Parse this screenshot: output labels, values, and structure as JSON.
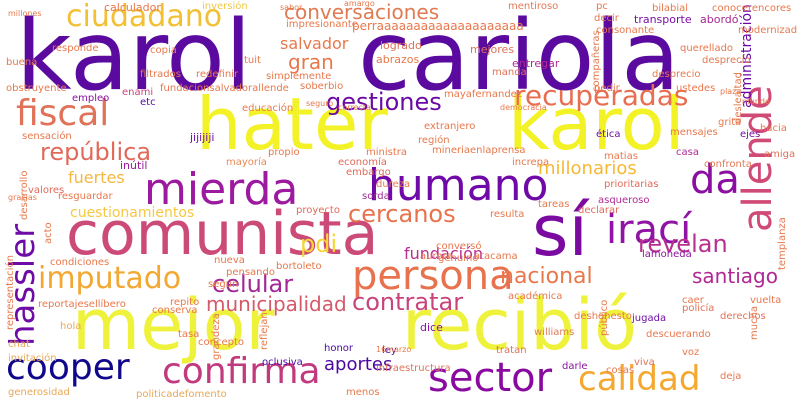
{
  "words": [
    {
      "text": "karol",
      "color": "#5b0aa0"
    },
    {
      "text": "cariola",
      "color": "#5b0aa0"
    },
    {
      "text": "hater",
      "color": "#f2f226"
    },
    {
      "text": "karol",
      "color": "#f2f226"
    },
    {
      "text": "mejor",
      "color": "#eef23a"
    },
    {
      "text": "recibió",
      "color": "#eef23a"
    },
    {
      "text": "comunista",
      "color": "#cc4a78"
    },
    {
      "text": "sí",
      "color": "#7a0aa0"
    },
    {
      "text": "mierda",
      "color": "#9c1aa0"
    },
    {
      "text": "humano",
      "color": "#6f0aa8"
    },
    {
      "text": "persona",
      "color": "#e8724e"
    },
    {
      "text": "confirma",
      "color": "#c23a7e"
    },
    {
      "text": "sector",
      "color": "#8a0aa0"
    },
    {
      "text": "calidad",
      "color": "#f5a830"
    },
    {
      "text": "allende",
      "color": "#d04a76"
    },
    {
      "text": "irací",
      "color": "#8f14a4"
    },
    {
      "text": "da",
      "color": "#8a0ea0"
    },
    {
      "text": "cooper",
      "color": "#10078a"
    },
    {
      "text": "hassler",
      "color": "#6e0aa6"
    },
    {
      "text": "fiscal",
      "color": "#e07258"
    },
    {
      "text": "ciudadano",
      "color": "#f2c032"
    },
    {
      "text": "imputado",
      "color": "#f2a832"
    },
    {
      "text": "recuperadas",
      "color": "#e86e52"
    },
    {
      "text": "gestiones",
      "color": "#6a0aa4"
    },
    {
      "text": "república",
      "color": "#e06a5a"
    },
    {
      "text": "celular",
      "color": "#a22898"
    },
    {
      "text": "revelan",
      "color": "#b8308e"
    },
    {
      "text": "contratar",
      "color": "#c8447c"
    },
    {
      "text": "nacional",
      "color": "#e8784c"
    },
    {
      "text": "municipalidad",
      "color": "#d45a6a"
    },
    {
      "text": "pdi",
      "color": "#f5d838"
    },
    {
      "text": "cercanos",
      "color": "#e8724e"
    },
    {
      "text": "santiago",
      "color": "#b02894"
    },
    {
      "text": "conversaciones",
      "color": "#e07a52"
    },
    {
      "text": "gran",
      "color": "#e8784c"
    },
    {
      "text": "salvador",
      "color": "#e8784c"
    },
    {
      "text": "fundación",
      "color": "#b82e8e"
    },
    {
      "text": "aportes",
      "color": "#4a08a0"
    },
    {
      "text": "millonarios",
      "color": "#f5b832"
    },
    {
      "text": "cuestionamientos",
      "color": "#f5c840"
    },
    {
      "text": "fuertes",
      "color": "#f2b840"
    },
    {
      "text": "administración",
      "color": "#6a0aa4"
    },
    {
      "text": "calculador",
      "color": "#e8784c"
    },
    {
      "text": "inversión",
      "color": "#eec848"
    },
    {
      "text": "logrado",
      "color": "#e07258"
    },
    {
      "text": "abrazos",
      "color": "#e8784c"
    },
    {
      "text": "mejores",
      "color": "#e07258"
    },
    {
      "text": "mentiroso",
      "color": "#e07a58"
    },
    {
      "text": "transporte",
      "color": "#7a10a4"
    },
    {
      "text": "abordó",
      "color": "#a82890"
    },
    {
      "text": "entregar",
      "color": "#b02a94"
    },
    {
      "text": "manda",
      "color": "#e07258"
    },
    {
      "text": "empleo",
      "color": "#8a14a0"
    },
    {
      "text": "enami",
      "color": "#c8447c"
    },
    {
      "text": "etc",
      "color": "#5a0aa0"
    },
    {
      "text": "ética",
      "color": "#7010a4"
    },
    {
      "text": "ejes",
      "color": "#7010a4"
    },
    {
      "text": "mayoría",
      "color": "#e88a58"
    },
    {
      "text": "economía",
      "color": "#e06a5a"
    },
    {
      "text": "embargo",
      "color": "#e06a5a"
    },
    {
      "text": "dureza",
      "color": "#e8784c"
    },
    {
      "text": "sorda",
      "color": "#a02898"
    },
    {
      "text": "proyecto",
      "color": "#e06a5a"
    },
    {
      "text": "resguardar",
      "color": "#e8784c"
    },
    {
      "text": "valores",
      "color": "#e06a5a"
    },
    {
      "text": "inútil",
      "color": "#9c1aa0"
    },
    {
      "text": "jijijiji",
      "color": "#7010a4"
    },
    {
      "text": "prioritarias",
      "color": "#e06a5a"
    },
    {
      "text": "asqueroso",
      "color": "#b02a94"
    },
    {
      "text": "declarar",
      "color": "#e06a5a"
    },
    {
      "text": "casa",
      "color": "#b02a94"
    },
    {
      "text": "amiga",
      "color": "#e07258"
    },
    {
      "text": "confronta",
      "color": "#e07a58"
    },
    {
      "text": "lamoneda",
      "color": "#8a14a0"
    },
    {
      "text": "williams",
      "color": "#e07a58"
    },
    {
      "text": "jugada",
      "color": "#7010a4"
    },
    {
      "text": "policía",
      "color": "#e07258"
    },
    {
      "text": "derechos",
      "color": "#e07258"
    },
    {
      "text": "vuelta",
      "color": "#e8784c"
    },
    {
      "text": "honor",
      "color": "#4a08a0"
    },
    {
      "text": "dice",
      "color": "#8a0ea0"
    },
    {
      "text": "ley",
      "color": "#4a08a0"
    },
    {
      "text": "oclusiva",
      "color": "#4a08a0"
    },
    {
      "text": "infraestructura",
      "color": "#e07258"
    },
    {
      "text": "cosas",
      "color": "#e8784c"
    },
    {
      "text": "viva",
      "color": "#e07258"
    },
    {
      "text": "darle",
      "color": "#8a14a0"
    },
    {
      "text": "tratan",
      "color": "#e07258"
    },
    {
      "text": "chat",
      "color": "#e8a858"
    },
    {
      "text": "hola",
      "color": "#e8a858"
    },
    {
      "text": "invitación",
      "color": "#e8a858"
    },
    {
      "text": "generosidad",
      "color": "#e8a858"
    },
    {
      "text": "politicadefomento",
      "color": "#e8a858"
    },
    {
      "text": "conserva",
      "color": "#e8784c"
    },
    {
      "text": "pensando",
      "color": "#e8784c"
    },
    {
      "text": "bortoleto",
      "color": "#e8784c"
    },
    {
      "text": "nueva",
      "color": "#e8784c"
    },
    {
      "text": "según",
      "color": "#e8784c"
    },
    {
      "text": "concepto",
      "color": "#e8784c"
    },
    {
      "text": "tasa",
      "color": "#e8784c"
    },
    {
      "text": "filtrados",
      "color": "#e8784c"
    },
    {
      "text": "redefinir",
      "color": "#e8784c"
    },
    {
      "text": "buena",
      "color": "#e8784c"
    },
    {
      "text": "obstruyente",
      "color": "#e8784c"
    },
    {
      "text": "tuit",
      "color": "#e8784c"
    },
    {
      "text": "simplemente",
      "color": "#e8784c"
    },
    {
      "text": "soberbio",
      "color": "#e8784c"
    },
    {
      "text": "mayafernandez",
      "color": "#e8784c"
    },
    {
      "text": "pedir",
      "color": "#e8784c"
    },
    {
      "text": "ustedes",
      "color": "#e8784c"
    },
    {
      "text": "desprecio",
      "color": "#e8784c"
    },
    {
      "text": "querellado",
      "color": "#e8784c"
    },
    {
      "text": "conoce",
      "color": "#e8784c"
    },
    {
      "text": "rencores",
      "color": "#e8784c"
    },
    {
      "text": "modernizad",
      "color": "#e8784c"
    },
    {
      "text": "bilabial",
      "color": "#e8784c"
    },
    {
      "text": "pc",
      "color": "#e8784c"
    },
    {
      "text": "decir",
      "color": "#e8784c"
    },
    {
      "text": "copia",
      "color": "#e8784c"
    },
    {
      "text": "responde",
      "color": "#e8784c"
    },
    {
      "text": "impresionante",
      "color": "#e8784c"
    },
    {
      "text": "sabor",
      "color": "#e8784c"
    },
    {
      "text": "amargo",
      "color": "#e8784c"
    },
    {
      "text": "millones",
      "color": "#e8784c"
    },
    {
      "text": "consonante",
      "color": "#e8784c"
    },
    {
      "text": "compañeras",
      "color": "#e8784c"
    },
    {
      "text": "educación",
      "color": "#e8784c"
    },
    {
      "text": "seguro",
      "color": "#e8784c"
    },
    {
      "text": "correcta",
      "color": "#e8784c"
    },
    {
      "text": "democracia",
      "color": "#e8784c"
    },
    {
      "text": "propio",
      "color": "#e8784c"
    },
    {
      "text": "ministra",
      "color": "#e8784c"
    },
    {
      "text": "extranjero",
      "color": "#e8784c"
    },
    {
      "text": "región",
      "color": "#e8784c"
    },
    {
      "text": "increpa",
      "color": "#e8784c"
    },
    {
      "text": "mensajes",
      "color": "#e8784c"
    },
    {
      "text": "matias",
      "color": "#e8784c"
    },
    {
      "text": "grita",
      "color": "#e8784c"
    },
    {
      "text": "hacia",
      "color": "#e8784c"
    },
    {
      "text": "sensación",
      "color": "#e8784c"
    },
    {
      "text": "desarrollo",
      "color": "#e8784c"
    },
    {
      "text": "representación",
      "color": "#e8784c"
    },
    {
      "text": "condiciones",
      "color": "#e8784c"
    },
    {
      "text": "reportajesellíbero",
      "color": "#e8784c"
    },
    {
      "text": "repito",
      "color": "#e8784c"
    },
    {
      "text": "mineriaenlaprensa",
      "color": "#e8784c"
    },
    {
      "text": "resulta",
      "color": "#e8784c"
    },
    {
      "text": "tareas",
      "color": "#e8784c"
    },
    {
      "text": "conversó",
      "color": "#e8784c"
    },
    {
      "text": "genuino",
      "color": "#e8784c"
    },
    {
      "text": "aurora",
      "color": "#e8784c"
    },
    {
      "text": "atacama",
      "color": "#e8784c"
    },
    {
      "text": "académica",
      "color": "#e8784c"
    },
    {
      "text": "deshonesto",
      "color": "#e8784c"
    },
    {
      "text": "descuerando",
      "color": "#e8784c"
    },
    {
      "text": "caer",
      "color": "#e8784c"
    },
    {
      "text": "mucha",
      "color": "#e8784c"
    },
    {
      "text": "público",
      "color": "#e8784c"
    },
    {
      "text": "voz",
      "color": "#e8784c"
    },
    {
      "text": "deja",
      "color": "#e8784c"
    },
    {
      "text": "templanza",
      "color": "#e8784c"
    },
    {
      "text": "desprecio",
      "color": "#e8784c"
    },
    {
      "text": "deslealtad",
      "color": "#e8784c"
    },
    {
      "text": "mundo",
      "color": "#e8784c"
    },
    {
      "text": "plaza",
      "color": "#e8784c"
    },
    {
      "text": "acto",
      "color": "#e8784c"
    },
    {
      "text": "gracias",
      "color": "#e8784c"
    },
    {
      "text": "grandeza",
      "color": "#e8784c"
    },
    {
      "text": "reflejan",
      "color": "#e8784c"
    },
    {
      "text": "menos",
      "color": "#e8784c"
    },
    {
      "text": "16marzo",
      "color": "#e8784c"
    },
    {
      "text": "fundacionsalvadorallende",
      "color": "#e8784c"
    },
    {
      "text": "perraaaaaaaaaaaaaaaaaaaa",
      "color": "#e8784c"
    }
  ]
}
